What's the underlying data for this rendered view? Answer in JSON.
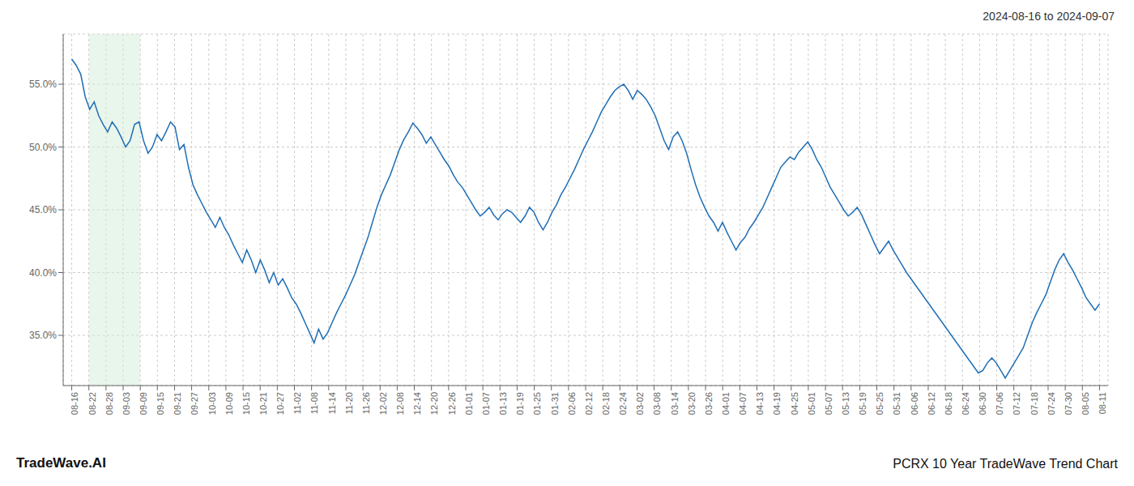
{
  "chart_data": {
    "type": "line",
    "title": "2024-08-16 to 2024-09-07",
    "annotations": [
      "TradeWave.AI",
      "PCRX 10 Year TradeWave Trend Chart"
    ],
    "color": "#1f6eb5",
    "grid": true,
    "xlim": [
      -0.5,
      60.5
    ],
    "xticks": [
      {
        "value": 0,
        "label": "08-16"
      },
      {
        "value": 1,
        "label": "08-22"
      },
      {
        "value": 2,
        "label": "08-28"
      },
      {
        "value": 3,
        "label": "09-03"
      },
      {
        "value": 4,
        "label": "09-09"
      },
      {
        "value": 5,
        "label": "09-15"
      },
      {
        "value": 6,
        "label": "09-21"
      },
      {
        "value": 7,
        "label": "09-27"
      },
      {
        "value": 8,
        "label": "10-03"
      },
      {
        "value": 9,
        "label": "10-09"
      },
      {
        "value": 10,
        "label": "10-15"
      },
      {
        "value": 11,
        "label": "10-21"
      },
      {
        "value": 12,
        "label": "10-27"
      },
      {
        "value": 13,
        "label": "11-02"
      },
      {
        "value": 14,
        "label": "11-08"
      },
      {
        "value": 15,
        "label": "11-14"
      },
      {
        "value": 16,
        "label": "11-20"
      },
      {
        "value": 17,
        "label": "11-26"
      },
      {
        "value": 18,
        "label": "12-02"
      },
      {
        "value": 19,
        "label": "12-08"
      },
      {
        "value": 20,
        "label": "12-14"
      },
      {
        "value": 21,
        "label": "12-20"
      },
      {
        "value": 22,
        "label": "12-26"
      },
      {
        "value": 23,
        "label": "01-01"
      },
      {
        "value": 24,
        "label": "01-07"
      },
      {
        "value": 25,
        "label": "01-13"
      },
      {
        "value": 26,
        "label": "01-19"
      },
      {
        "value": 27,
        "label": "01-25"
      },
      {
        "value": 28,
        "label": "01-31"
      },
      {
        "value": 29,
        "label": "02-06"
      },
      {
        "value": 30,
        "label": "02-12"
      },
      {
        "value": 31,
        "label": "02-18"
      },
      {
        "value": 32,
        "label": "02-24"
      },
      {
        "value": 33,
        "label": "03-02"
      },
      {
        "value": 34,
        "label": "03-08"
      },
      {
        "value": 35,
        "label": "03-14"
      },
      {
        "value": 36,
        "label": "03-20"
      },
      {
        "value": 37,
        "label": "03-26"
      },
      {
        "value": 38,
        "label": "04-01"
      },
      {
        "value": 39,
        "label": "04-07"
      },
      {
        "value": 40,
        "label": "04-13"
      },
      {
        "value": 41,
        "label": "04-19"
      },
      {
        "value": 42,
        "label": "04-25"
      },
      {
        "value": 43,
        "label": "05-01"
      },
      {
        "value": 44,
        "label": "05-07"
      },
      {
        "value": 45,
        "label": "05-13"
      },
      {
        "value": 46,
        "label": "05-19"
      },
      {
        "value": 47,
        "label": "05-25"
      },
      {
        "value": 48,
        "label": "05-31"
      },
      {
        "value": 49,
        "label": "06-06"
      },
      {
        "value": 50,
        "label": "06-12"
      },
      {
        "value": 51,
        "label": "06-18"
      },
      {
        "value": 52,
        "label": "06-24"
      },
      {
        "value": 53,
        "label": "06-30"
      },
      {
        "value": 54,
        "label": "07-06"
      },
      {
        "value": 55,
        "label": "07-12"
      },
      {
        "value": 56,
        "label": "07-18"
      },
      {
        "value": 57,
        "label": "07-24"
      },
      {
        "value": 58,
        "label": "07-30"
      },
      {
        "value": 59,
        "label": "08-05"
      },
      {
        "value": 60,
        "label": "08-11"
      }
    ],
    "ylim": [
      0.31,
      0.59
    ],
    "yticks": [
      {
        "value": 0.35,
        "label": "35.0%"
      },
      {
        "value": 0.4,
        "label": "40.0%"
      },
      {
        "value": 0.45,
        "label": "45.0%"
      },
      {
        "value": 0.5,
        "label": "50.0%"
      },
      {
        "value": 0.55,
        "label": "55.0%"
      }
    ],
    "spans": [
      {
        "x": [
          1,
          4
        ],
        "color": "#d4edda"
      }
    ],
    "values": [
      0.57,
      0.565,
      0.558,
      0.54,
      0.53,
      0.536,
      0.525,
      0.518,
      0.512,
      0.52,
      0.515,
      0.508,
      0.5,
      0.505,
      0.518,
      0.52,
      0.505,
      0.495,
      0.5,
      0.51,
      0.505,
      0.512,
      0.52,
      0.516,
      0.498,
      0.502,
      0.484,
      0.47,
      0.462,
      0.455,
      0.448,
      0.442,
      0.436,
      0.444,
      0.436,
      0.43,
      0.422,
      0.415,
      0.408,
      0.418,
      0.41,
      0.4,
      0.41,
      0.402,
      0.392,
      0.4,
      0.39,
      0.395,
      0.388,
      0.38,
      0.375,
      0.368,
      0.36,
      0.352,
      0.344,
      0.355,
      0.347,
      0.352,
      0.36,
      0.368,
      0.375,
      0.382,
      0.39,
      0.398,
      0.408,
      0.418,
      0.428,
      0.44,
      0.452,
      0.462,
      0.47,
      0.478,
      0.488,
      0.498,
      0.506,
      0.512,
      0.519,
      0.515,
      0.51,
      0.503,
      0.508,
      0.502,
      0.496,
      0.49,
      0.485,
      0.478,
      0.472,
      0.468,
      0.462,
      0.456,
      0.45,
      0.445,
      0.448,
      0.452,
      0.446,
      0.442,
      0.447,
      0.45,
      0.448,
      0.444,
      0.44,
      0.445,
      0.452,
      0.448,
      0.44,
      0.434,
      0.44,
      0.448,
      0.454,
      0.462,
      0.468,
      0.475,
      0.482,
      0.49,
      0.498,
      0.505,
      0.512,
      0.52,
      0.528,
      0.534,
      0.54,
      0.545,
      0.548,
      0.55,
      0.545,
      0.538,
      0.545,
      0.542,
      0.538,
      0.532,
      0.525,
      0.515,
      0.505,
      0.498,
      0.508,
      0.512,
      0.505,
      0.495,
      0.482,
      0.47,
      0.46,
      0.452,
      0.445,
      0.44,
      0.433,
      0.44,
      0.432,
      0.425,
      0.418,
      0.424,
      0.428,
      0.435,
      0.44,
      0.446,
      0.452,
      0.46,
      0.468,
      0.476,
      0.484,
      0.488,
      0.492,
      0.49,
      0.496,
      0.5,
      0.504,
      0.498,
      0.49,
      0.484,
      0.476,
      0.468,
      0.462,
      0.456,
      0.45,
      0.445,
      0.448,
      0.452,
      0.446,
      0.438,
      0.43,
      0.422,
      0.415,
      0.42,
      0.425,
      0.418,
      0.412,
      0.406,
      0.4,
      0.395,
      0.39,
      0.385,
      0.38,
      0.375,
      0.37,
      0.365,
      0.36,
      0.355,
      0.35,
      0.345,
      0.34,
      0.335,
      0.33,
      0.325,
      0.32,
      0.322,
      0.328,
      0.332,
      0.328,
      0.322,
      0.316,
      0.322,
      0.328,
      0.334,
      0.34,
      0.35,
      0.36,
      0.368,
      0.375,
      0.382,
      0.392,
      0.402,
      0.41,
      0.415,
      0.408,
      0.402,
      0.395,
      0.388,
      0.38,
      0.375,
      0.37,
      0.375
    ]
  }
}
